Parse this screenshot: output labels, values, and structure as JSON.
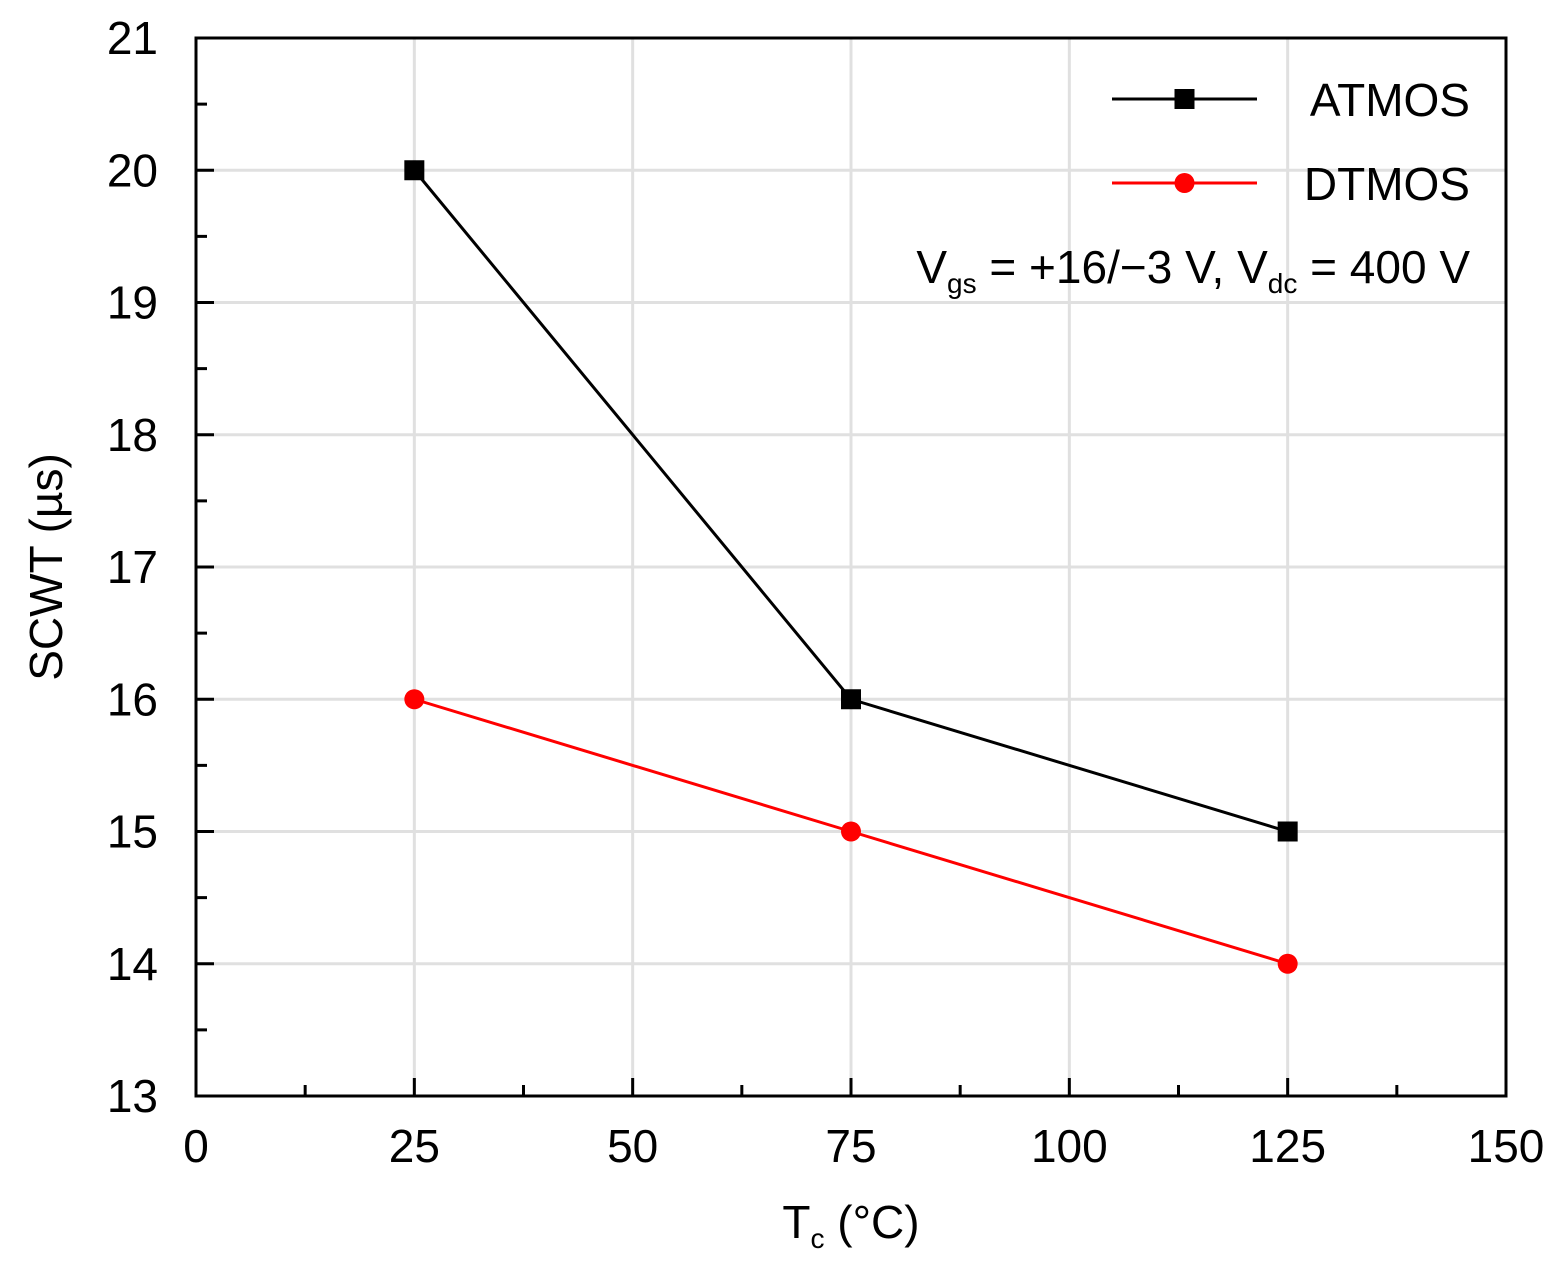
{
  "chart_data": {
    "type": "line",
    "title": "",
    "xlabel": {
      "main": "T",
      "sub": "c",
      "unit": " (°C)"
    },
    "ylabel": "SCWT (µs)",
    "xlim": [
      0,
      150
    ],
    "ylim": [
      13,
      21
    ],
    "x_ticks": [
      0,
      25,
      50,
      75,
      100,
      125,
      150
    ],
    "x_tick_labels": [
      "0",
      "25",
      "50",
      "75",
      "100",
      "125",
      "150"
    ],
    "y_ticks": [
      13,
      14,
      15,
      16,
      17,
      18,
      19,
      20,
      21
    ],
    "y_tick_labels": [
      "13",
      "14",
      "15",
      "16",
      "17",
      "18",
      "19",
      "20",
      "21"
    ],
    "grid": true,
    "legend_position": "top-right",
    "series": [
      {
        "name": "ATMOS",
        "color": "#000000",
        "marker": "square",
        "x": [
          25,
          75,
          125
        ],
        "values": [
          20,
          16,
          15
        ]
      },
      {
        "name": "DTMOS",
        "color": "#ff0000",
        "marker": "circle",
        "x": [
          25,
          75,
          125
        ],
        "values": [
          16,
          15,
          14
        ]
      }
    ],
    "annotation": {
      "v1": "V",
      "v1_sub": "gs",
      "v1_rest": " = +16/−3 V, ",
      "v2": "V",
      "v2_sub": "dc",
      "v2_rest": " = 400 V"
    }
  }
}
